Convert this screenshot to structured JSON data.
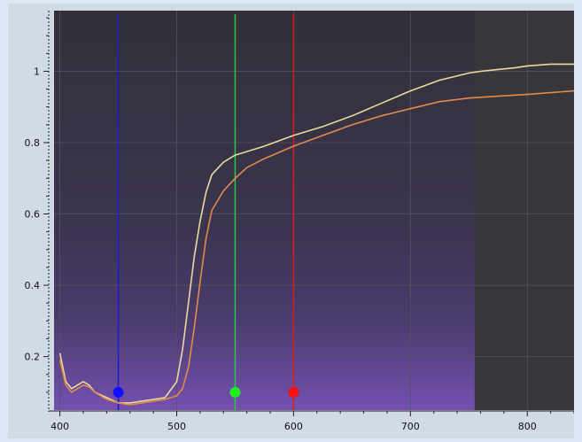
{
  "chart_data": {
    "type": "line",
    "xlim": [
      395,
      840
    ],
    "ylim": [
      0.05,
      1.17
    ],
    "x_ticks": [
      400,
      500,
      600,
      700,
      800
    ],
    "y_ticks": [
      0.2,
      0.4,
      0.6,
      0.8,
      1
    ],
    "x_tick_labels": [
      "400",
      "500",
      "600",
      "700",
      "800"
    ],
    "y_tick_labels": [
      "0.2",
      "0.4",
      "0.6",
      "0.8",
      "1"
    ],
    "grid": true,
    "shaded_region_end_x": 755,
    "series": [
      {
        "color": "#e8dc9c",
        "points": [
          [
            400,
            0.21
          ],
          [
            405,
            0.13
          ],
          [
            410,
            0.11
          ],
          [
            415,
            0.12
          ],
          [
            420,
            0.13
          ],
          [
            425,
            0.12
          ],
          [
            430,
            0.1
          ],
          [
            440,
            0.085
          ],
          [
            450,
            0.07
          ],
          [
            460,
            0.07
          ],
          [
            470,
            0.075
          ],
          [
            480,
            0.08
          ],
          [
            490,
            0.085
          ],
          [
            500,
            0.13
          ],
          [
            505,
            0.22
          ],
          [
            510,
            0.35
          ],
          [
            515,
            0.48
          ],
          [
            520,
            0.58
          ],
          [
            525,
            0.66
          ],
          [
            530,
            0.71
          ],
          [
            540,
            0.745
          ],
          [
            550,
            0.765
          ],
          [
            560,
            0.775
          ],
          [
            575,
            0.79
          ],
          [
            600,
            0.82
          ],
          [
            625,
            0.845
          ],
          [
            650,
            0.875
          ],
          [
            675,
            0.91
          ],
          [
            700,
            0.945
          ],
          [
            725,
            0.975
          ],
          [
            750,
            0.995
          ],
          [
            760,
            1.0
          ],
          [
            775,
            1.005
          ],
          [
            790,
            1.01
          ],
          [
            800,
            1.015
          ],
          [
            820,
            1.02
          ],
          [
            840,
            1.02
          ]
        ]
      },
      {
        "color": "#e28a4a",
        "points": [
          [
            400,
            0.19
          ],
          [
            405,
            0.12
          ],
          [
            410,
            0.1
          ],
          [
            415,
            0.11
          ],
          [
            420,
            0.12
          ],
          [
            425,
            0.115
          ],
          [
            430,
            0.1
          ],
          [
            440,
            0.08
          ],
          [
            450,
            0.07
          ],
          [
            460,
            0.065
          ],
          [
            470,
            0.07
          ],
          [
            480,
            0.075
          ],
          [
            490,
            0.08
          ],
          [
            500,
            0.09
          ],
          [
            505,
            0.11
          ],
          [
            510,
            0.17
          ],
          [
            515,
            0.28
          ],
          [
            520,
            0.41
          ],
          [
            525,
            0.53
          ],
          [
            530,
            0.61
          ],
          [
            540,
            0.665
          ],
          [
            550,
            0.7
          ],
          [
            560,
            0.73
          ],
          [
            575,
            0.755
          ],
          [
            600,
            0.79
          ],
          [
            625,
            0.82
          ],
          [
            650,
            0.85
          ],
          [
            675,
            0.875
          ],
          [
            700,
            0.895
          ],
          [
            725,
            0.915
          ],
          [
            750,
            0.925
          ],
          [
            775,
            0.93
          ],
          [
            800,
            0.935
          ],
          [
            820,
            0.94
          ],
          [
            840,
            0.945
          ]
        ]
      }
    ],
    "markers": [
      {
        "x": 450,
        "y": 0.1,
        "color": "#1010ff",
        "line_color": "#1a1ad0"
      },
      {
        "x": 550,
        "y": 0.1,
        "color": "#22ee22",
        "line_color": "#22cc44"
      },
      {
        "x": 600,
        "y": 0.1,
        "color": "#ff1010",
        "line_color": "#dd1a1a"
      }
    ]
  }
}
